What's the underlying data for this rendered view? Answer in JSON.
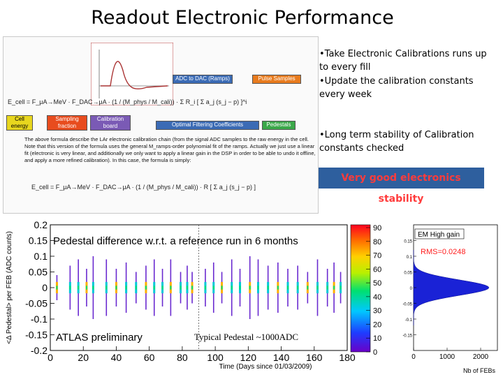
{
  "title": "Readout Electronic Performance",
  "bullets": [
    "•Take Electronic Calibrations  runs up to every fill",
    "•Update the calibration constants every week",
    "•Long term stability of Calibration constants checked"
  ],
  "highlight": "Very good electronics stability",
  "formula_panel": {
    "tags": {
      "ramps": "ADC to DAC (Ramps)",
      "pulse": "Pulse Samples",
      "cell_energy": "Cell energy",
      "sampling": "Sampling fraction",
      "calib_board": "Calibration board",
      "ofc": "Optimal Filtering Coefficients",
      "pedestals": "Pedestals"
    },
    "formula1": "E_cell = F_μA→MeV · F_DAC→μA · (1 / (M_phys / M_cali)) · Σ R_i [ Σ a_j (s_j − p) ]^i",
    "formula2": "E_cell = F_μA→MeV · F_DAC→μA · (1 / (M_phys / M_cali)) · R [ Σ a_j (s_j − p) ]",
    "description": "The above formula describe the LAr electronic calibration chain (from the signal ADC samples to the raw energy in the cell. Note that this version of the formula uses the general M_ramps-order polynomial fit of the ramps. Actually we just use a linear fit (electronic is very linear, and additionally we only want to apply a linear gain in the DSP in order to be able to undo it offline, and apply a more refined calibration). In this case, the formula is simply:"
  },
  "chart_data": [
    {
      "type": "scatter",
      "title": "Pedestal difference w.r.t. a reference run in 6 months",
      "xlabel": "Time (Days since 01/03/2009)",
      "ylabel": "<Δ Pedestal> per FEB (ADC counts)",
      "xlim": [
        0,
        180
      ],
      "ylim": [
        -0.2,
        0.2
      ],
      "xticks": [
        "0",
        "20",
        "40",
        "60",
        "80",
        "100",
        "120",
        "140",
        "160",
        "180"
      ],
      "yticks": [
        "0.2",
        "0.15",
        "0.1",
        "0.05",
        "0",
        "-0.05",
        "-0.1",
        "-0.15",
        "-0.2"
      ],
      "annotations": [
        "ATLAS preliminary",
        "Typical Pedestal ~1000ADC"
      ],
      "colorbar_ticks": [
        "90",
        "80",
        "70",
        "60",
        "50",
        "40",
        "30",
        "20",
        "10",
        "0"
      ],
      "reference_day": 90,
      "columns": [
        {
          "x": 4,
          "spread": 0.04
        },
        {
          "x": 12,
          "spread": 0.07
        },
        {
          "x": 17,
          "spread": 0.09
        },
        {
          "x": 22,
          "spread": 0.06
        },
        {
          "x": 26,
          "spread": 0.1
        },
        {
          "x": 34,
          "spread": 0.09
        },
        {
          "x": 40,
          "spread": 0.06
        },
        {
          "x": 46,
          "spread": 0.08
        },
        {
          "x": 52,
          "spread": 0.05
        },
        {
          "x": 58,
          "spread": 0.07
        },
        {
          "x": 63,
          "spread": 0.09
        },
        {
          "x": 68,
          "spread": 0.06
        },
        {
          "x": 73,
          "spread": 0.09
        },
        {
          "x": 79,
          "spread": 0.05
        },
        {
          "x": 83,
          "spread": 0.07
        },
        {
          "x": 86,
          "spread": 0.05
        },
        {
          "x": 94,
          "spread": 0.06
        },
        {
          "x": 99,
          "spread": 0.08
        },
        {
          "x": 104,
          "spread": 0.05
        },
        {
          "x": 110,
          "spread": 0.09
        },
        {
          "x": 115,
          "spread": 0.06
        },
        {
          "x": 121,
          "spread": 0.1
        },
        {
          "x": 126,
          "spread": 0.09
        },
        {
          "x": 132,
          "spread": 0.07
        },
        {
          "x": 138,
          "spread": 0.08
        },
        {
          "x": 144,
          "spread": 0.06
        },
        {
          "x": 150,
          "spread": 0.07
        },
        {
          "x": 156,
          "spread": 0.05
        },
        {
          "x": 162,
          "spread": 0.09
        },
        {
          "x": 168,
          "spread": 0.06
        },
        {
          "x": 172,
          "spread": 0.08
        },
        {
          "x": 176,
          "spread": 0.05
        }
      ]
    },
    {
      "type": "histogram",
      "legend": "EM High gain",
      "rms_label": "RMS=0.0248",
      "xlabel": "Nb of FEBs",
      "xticks": [
        "0",
        "1000",
        "2000"
      ],
      "yticks": [
        "0.15",
        "0.1",
        "0.05",
        "0",
        "-0.05",
        "-0.1",
        "-0.15"
      ],
      "ylim": [
        -0.2,
        0.2
      ],
      "xlim": [
        0,
        2500
      ],
      "rms": 0.0248,
      "peak": 2250
    }
  ]
}
